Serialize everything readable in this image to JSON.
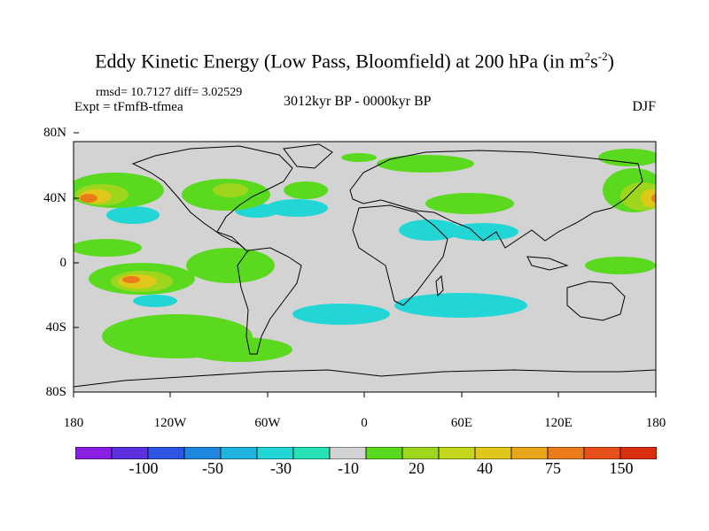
{
  "title": {
    "main": "Eddy Kinetic Energy (Low Pass, Bloomfield) at 200 hPa (in m",
    "sup1": "2",
    "mid": "s",
    "sup2": "-2",
    "end": ")"
  },
  "subtitle": {
    "stats": "rmsd= 10.7127 diff= 3.02529",
    "expt": "Expt = tFmfB-tfmea",
    "period": "3012kyr BP - 0000kyr BP",
    "season": "DJF"
  },
  "axes": {
    "y_ticks": [
      "80N",
      "40N",
      "0",
      "40S",
      "80S"
    ],
    "x_ticks": [
      "180",
      "120W",
      "60W",
      "0",
      "60E",
      "120E",
      "180"
    ]
  },
  "colorbar": {
    "colors": [
      "#8a1fe3",
      "#5a30e0",
      "#2c55e0",
      "#1f86e0",
      "#1fb4e0",
      "#22d6d6",
      "#27e0b4",
      "#d3d3d3",
      "#5ad91e",
      "#9ed61e",
      "#c4d61e",
      "#e0c81a",
      "#e8a51a",
      "#ea7a1a",
      "#e8501a",
      "#d8300f"
    ],
    "labels": [
      "-100",
      "-50",
      "-30",
      "-10",
      "20",
      "40",
      "75",
      "150"
    ]
  },
  "map_colors": {
    "background": "#d3d3d3",
    "cyan": "#22d6d6",
    "green": "#5ad91e",
    "yellowgreen": "#9ed61e",
    "yellow": "#e0c81a",
    "orange": "#ea7a1a"
  }
}
